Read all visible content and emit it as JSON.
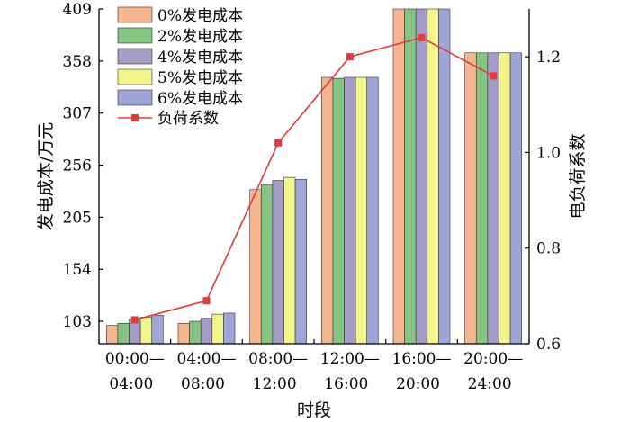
{
  "chart_data": {
    "type": "bar",
    "title": "",
    "xlabel": "时段",
    "ylabel": "发电成本/万元",
    "y2label": "电负荷系数",
    "categories": [
      [
        "00:00—",
        "04:00"
      ],
      [
        "04:00—",
        "08:00"
      ],
      [
        "08:00—",
        "12:00"
      ],
      [
        "12:00—",
        "16:00"
      ],
      [
        "16:00—",
        "20:00"
      ],
      [
        "20:00—",
        "24:00"
      ]
    ],
    "ylim": [
      81,
      409
    ],
    "yticks": [
      103,
      154,
      205,
      256,
      307,
      358,
      409
    ],
    "y2lim": [
      0.6,
      1.3
    ],
    "y2ticks": [
      "0.6",
      "0.8",
      "1.0",
      "1.2"
    ],
    "legend_position": "top-left",
    "grid": false,
    "series": [
      {
        "name": "0%发电成本",
        "color": "#f5b68f",
        "values": [
          99,
          101,
          232,
          342,
          409,
          366
        ]
      },
      {
        "name": "2%发电成本",
        "color": "#86c482",
        "values": [
          101,
          103,
          237,
          341,
          409,
          366
        ]
      },
      {
        "name": "4%发电成本",
        "color": "#a59cc6",
        "values": [
          105,
          106,
          241,
          342,
          409,
          366
        ]
      },
      {
        "name": "5%发电成本",
        "color": "#f3f48a",
        "values": [
          107,
          110,
          244,
          342,
          409,
          366
        ]
      },
      {
        "name": "6%发电成本",
        "color": "#9ea6d9",
        "values": [
          109,
          111,
          242,
          342,
          409,
          366
        ]
      }
    ],
    "line_series": {
      "name": "负荷系数",
      "color": "#e03c3c",
      "values": [
        0.65,
        0.69,
        1.02,
        1.2,
        1.24,
        1.16
      ]
    }
  }
}
